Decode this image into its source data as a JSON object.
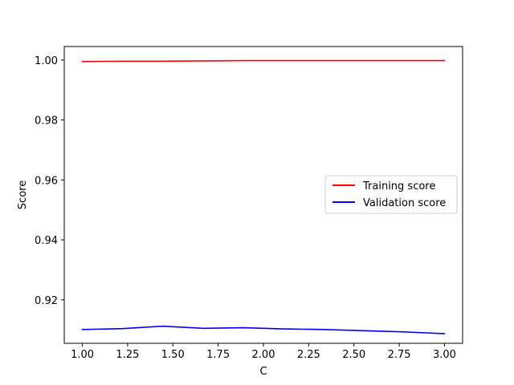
{
  "chart_data": {
    "type": "line",
    "title": "",
    "xlabel": "C",
    "ylabel": "Score",
    "xlim": [
      0.9,
      3.1
    ],
    "ylim": [
      0.9055,
      1.0045
    ],
    "xticks": [
      1.0,
      1.25,
      1.5,
      1.75,
      2.0,
      2.25,
      2.5,
      2.75,
      3.0
    ],
    "xtick_labels": [
      "1.00",
      "1.25",
      "1.50",
      "1.75",
      "2.00",
      "2.25",
      "2.50",
      "2.75",
      "3.00"
    ],
    "yticks": [
      0.92,
      0.94,
      0.96,
      0.98,
      1.0
    ],
    "ytick_labels": [
      "0.92",
      "0.94",
      "0.96",
      "0.98",
      "1.00"
    ],
    "grid": false,
    "legend_position": "center-right",
    "x": [
      1.0,
      1.222,
      1.444,
      1.667,
      1.889,
      2.111,
      2.333,
      2.556,
      2.778,
      3.0
    ],
    "series": [
      {
        "name": "Training score",
        "color": "#ff0000",
        "values": [
          0.9995,
          0.9996,
          0.9996,
          0.9997,
          0.9998,
          0.9998,
          0.9998,
          0.9998,
          0.9998,
          0.9998
        ]
      },
      {
        "name": "Validation score",
        "color": "#0000ff",
        "values": [
          0.9101,
          0.9104,
          0.9112,
          0.9105,
          0.9107,
          0.9103,
          0.9101,
          0.9097,
          0.9093,
          0.9087
        ]
      }
    ]
  }
}
